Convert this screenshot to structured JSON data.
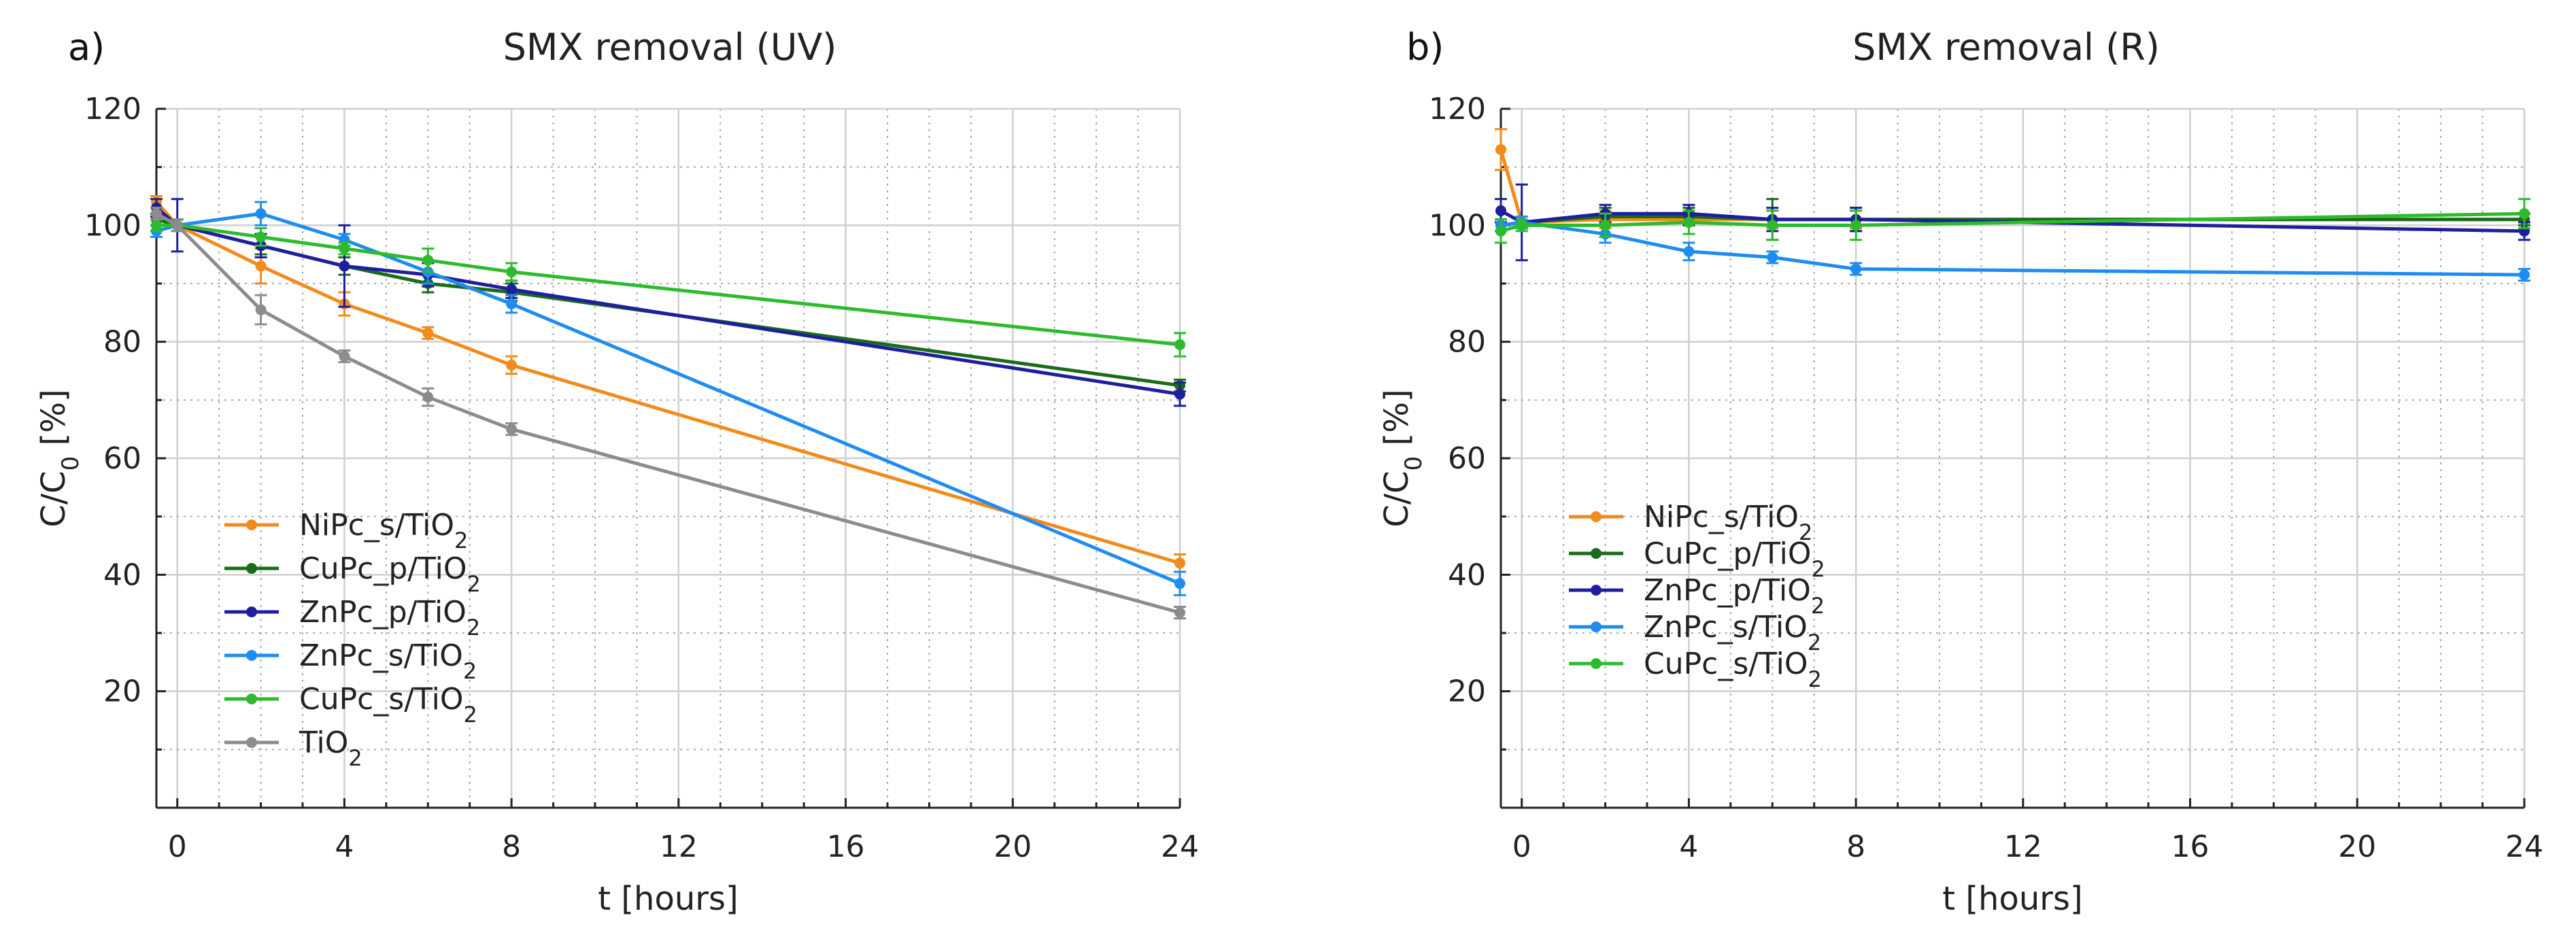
{
  "figure": {
    "panel_labels": [
      "a)",
      "b)"
    ]
  },
  "chart_data": [
    {
      "type": "line",
      "panel": "a)",
      "title": "SMX removal (UV)",
      "xlabel": "t [hours]",
      "ylabel": "C/C0 [%]",
      "xlim": [
        -0.5,
        24
      ],
      "ylim": [
        0,
        120
      ],
      "xticks": [
        0,
        4,
        8,
        12,
        16,
        20,
        24
      ],
      "yticks": [
        20,
        40,
        60,
        80,
        100,
        120
      ],
      "grid": true,
      "legend_position": "lower-left",
      "series": [
        {
          "name": "NiPc_s/TiO2",
          "label_base": "NiPc_s/TiO",
          "label_sub": "2",
          "color": "#f28a1c",
          "x": [
            -0.5,
            0,
            2,
            4,
            6,
            8,
            24
          ],
          "y": [
            104,
            100,
            93,
            86.5,
            81.5,
            76,
            42
          ],
          "err": [
            1,
            1,
            3,
            2,
            1,
            1.5,
            1.5
          ]
        },
        {
          "name": "CuPc_p/TiO2",
          "label_base": "CuPc_p/TiO",
          "label_sub": "2",
          "color": "#1a6b1a",
          "x": [
            -0.5,
            0,
            2,
            4,
            6,
            8,
            24
          ],
          "y": [
            101,
            100,
            96.5,
            93,
            90,
            88.5,
            72.5
          ],
          "err": [
            1,
            1,
            1.5,
            1.5,
            1.5,
            1.5,
            1
          ]
        },
        {
          "name": "ZnPc_p/TiO2",
          "label_base": "ZnPc_p/TiO",
          "label_sub": "2",
          "color": "#1e1e9e",
          "x": [
            -0.5,
            0,
            2,
            4,
            6,
            8,
            24
          ],
          "y": [
            103,
            100,
            96.5,
            93,
            91.5,
            89,
            71
          ],
          "err": [
            1.5,
            4.5,
            2,
            7,
            2,
            1.5,
            2
          ]
        },
        {
          "name": "ZnPc_s/TiO2",
          "label_base": "ZnPc_s/TiO",
          "label_sub": "2",
          "color": "#1e8cf0",
          "x": [
            -0.5,
            0,
            2,
            4,
            6,
            8,
            24
          ],
          "y": [
            99,
            100,
            102,
            97.5,
            92,
            86.5,
            38.5
          ],
          "err": [
            1,
            1,
            2,
            1,
            2,
            1.5,
            2
          ]
        },
        {
          "name": "CuPc_s/TiO2",
          "label_base": "CuPc_s/TiO",
          "label_sub": "2",
          "color": "#2dbb2d",
          "x": [
            -0.5,
            0,
            2,
            4,
            6,
            8,
            24
          ],
          "y": [
            100,
            100,
            98,
            96,
            94,
            92,
            79.5
          ],
          "err": [
            1,
            1,
            1.5,
            1,
            2,
            1.5,
            2
          ]
        },
        {
          "name": "TiO2",
          "label_base": "TiO",
          "label_sub": "2",
          "color": "#8c8c8c",
          "x": [
            -0.5,
            0,
            2,
            4,
            6,
            8,
            24
          ],
          "y": [
            102,
            100,
            85.5,
            77.5,
            70.5,
            65,
            33.5
          ],
          "err": [
            1,
            1,
            2.5,
            1,
            1.5,
            1,
            1
          ]
        }
      ]
    },
    {
      "type": "line",
      "panel": "b)",
      "title": "SMX removal (R)",
      "xlabel": "t [hours]",
      "ylabel": "C/C0 [%]",
      "xlim": [
        -0.5,
        24
      ],
      "ylim": [
        0,
        120
      ],
      "xticks": [
        0,
        4,
        8,
        12,
        16,
        20,
        24
      ],
      "yticks": [
        20,
        40,
        60,
        80,
        100,
        120
      ],
      "grid": true,
      "legend_position": "lower-left",
      "series": [
        {
          "name": "NiPc_s/TiO2",
          "label_base": "NiPc_s/TiO",
          "label_sub": "2",
          "color": "#f28a1c",
          "x": [
            -0.5,
            0,
            2,
            4,
            6,
            8,
            24
          ],
          "y": [
            113,
            100.5,
            101,
            101,
            101,
            101,
            101
          ],
          "err": [
            3.5,
            1,
            1.5,
            1,
            1.5,
            1.5,
            1
          ]
        },
        {
          "name": "CuPc_p/TiO2",
          "label_base": "CuPc_p/TiO",
          "label_sub": "2",
          "color": "#1a6b1a",
          "x": [
            -0.5,
            0,
            2,
            4,
            6,
            8,
            24
          ],
          "y": [
            100,
            100.5,
            101.5,
            101.5,
            101,
            101,
            101
          ],
          "err": [
            1,
            1,
            1.5,
            1.5,
            3.5,
            2,
            1
          ]
        },
        {
          "name": "ZnPc_p/TiO2",
          "label_base": "ZnPc_p/TiO",
          "label_sub": "2",
          "color": "#1e1e9e",
          "x": [
            -0.5,
            0,
            2,
            4,
            6,
            8,
            24
          ],
          "y": [
            102.5,
            100.5,
            102,
            102,
            101,
            101,
            99
          ],
          "err": [
            2,
            6.5,
            1.5,
            1.5,
            2,
            2,
            1.5
          ]
        },
        {
          "name": "ZnPc_s/TiO2",
          "label_base": "ZnPc_s/TiO",
          "label_sub": "2",
          "color": "#1e8cf0",
          "x": [
            -0.5,
            0,
            2,
            4,
            6,
            8,
            24
          ],
          "y": [
            100,
            100.5,
            98.5,
            95.5,
            94.5,
            92.5,
            91.5
          ],
          "err": [
            1,
            1,
            1.5,
            1.5,
            1,
            1,
            1
          ]
        },
        {
          "name": "CuPc_s/TiO2",
          "label_base": "CuPc_s/TiO",
          "label_sub": "2",
          "color": "#2dbb2d",
          "x": [
            -0.5,
            0,
            2,
            4,
            6,
            8,
            24
          ],
          "y": [
            99,
            100,
            100,
            100.5,
            100,
            100,
            102
          ],
          "err": [
            2,
            1,
            2,
            2,
            2.5,
            2.5,
            2.5
          ]
        }
      ]
    }
  ]
}
